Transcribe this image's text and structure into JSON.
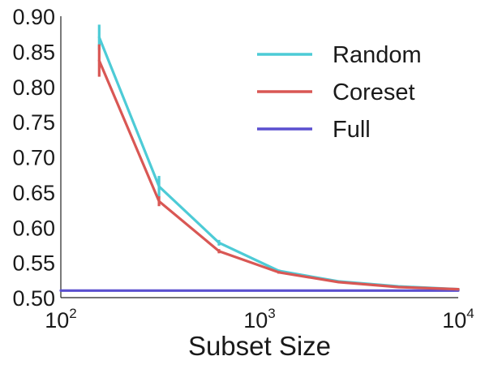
{
  "chart_data": {
    "type": "line",
    "title": "",
    "xlabel": "Subset Size",
    "ylabel": "",
    "xscale": "log",
    "xlim": [
      100,
      10000
    ],
    "ylim": [
      0.5,
      0.9
    ],
    "grid": false,
    "legend_position": "top-right",
    "x_ticks": [
      {
        "value": 100,
        "base": "10",
        "exp": "2"
      },
      {
        "value": 1000,
        "base": "10",
        "exp": "3"
      },
      {
        "value": 10000,
        "base": "10",
        "exp": "4"
      }
    ],
    "y_ticks": [
      "0.50",
      "0.55",
      "0.60",
      "0.65",
      "0.70",
      "0.75",
      "0.80",
      "0.85",
      "0.90"
    ],
    "series": [
      {
        "name": "Random",
        "color": "#4dcbd6",
        "x": [
          156,
          312,
          625,
          1250,
          2500,
          5000,
          10000
        ],
        "y": [
          0.87,
          0.658,
          0.578,
          0.538,
          0.523,
          0.516,
          0.512
        ],
        "err": [
          0.018,
          0.015,
          0.004,
          0.002,
          0.001,
          0.001,
          0.001
        ]
      },
      {
        "name": "Coreset",
        "color": "#d95754",
        "x": [
          156,
          312,
          625,
          1250,
          2500,
          5000,
          10000
        ],
        "y": [
          0.837,
          0.637,
          0.566,
          0.536,
          0.522,
          0.515,
          0.512
        ],
        "err": [
          0.023,
          0.007,
          0.003,
          0.002,
          0.001,
          0.001,
          0.001
        ]
      },
      {
        "name": "Full",
        "color": "#5a4fcf",
        "x": [
          100,
          10000
        ],
        "y": [
          0.51,
          0.51
        ],
        "err": [
          0,
          0
        ]
      }
    ]
  }
}
